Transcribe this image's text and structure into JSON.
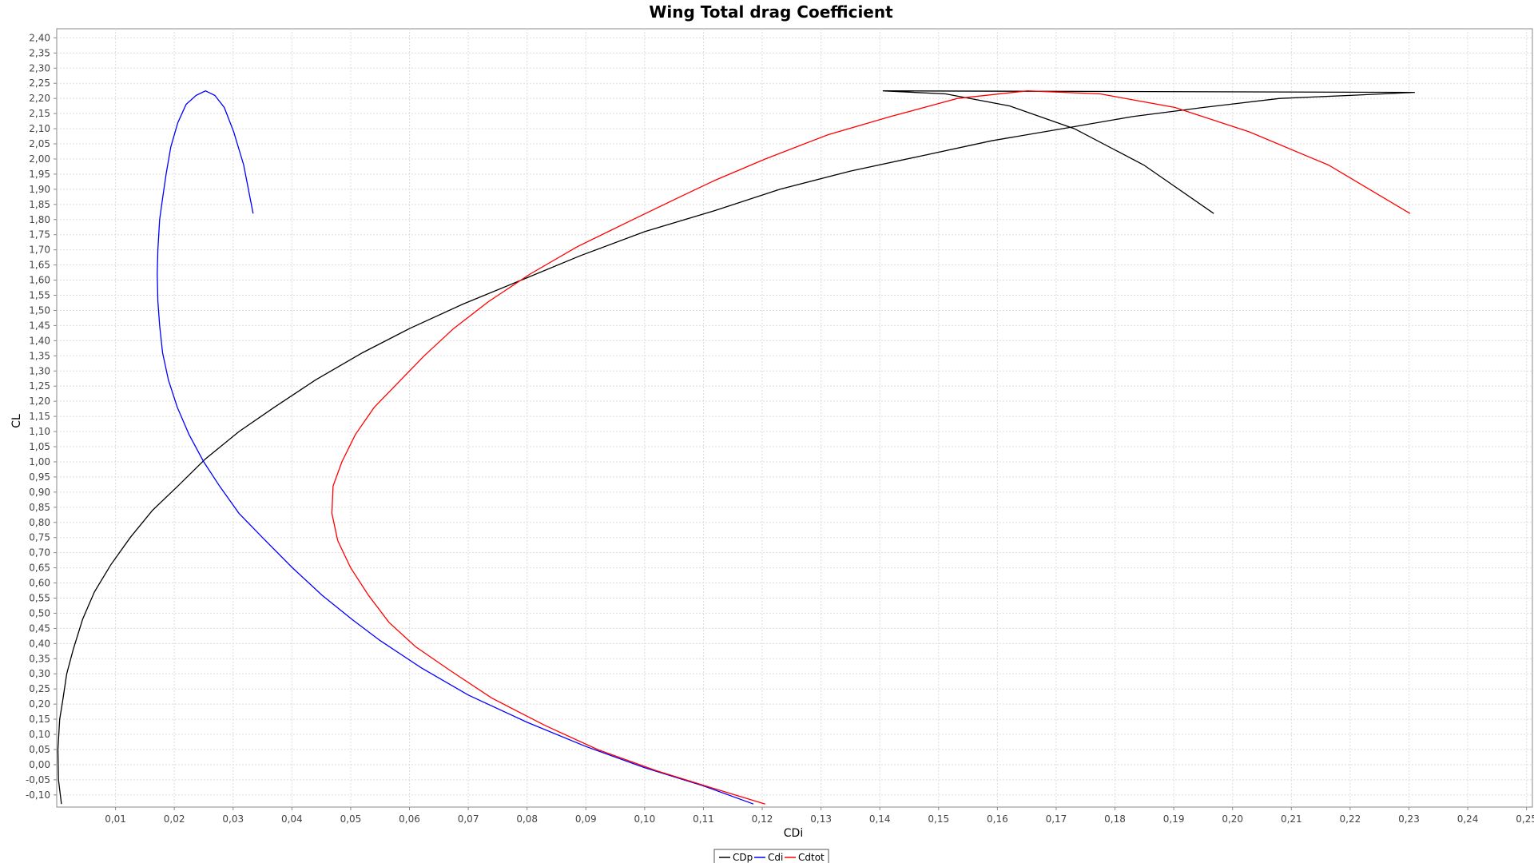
{
  "chart_data": {
    "type": "line",
    "title": "Wing Total drag Coefficient",
    "xlabel": "CDi",
    "ylabel": "CL",
    "xlim": [
      0,
      0.251
    ],
    "ylim": [
      -0.14,
      2.43
    ],
    "grid": true,
    "legend_position": "bottom-center",
    "x_tick_labels": [
      "0,01",
      "0,02",
      "0,03",
      "0,04",
      "0,05",
      "0,06",
      "0,07",
      "0,08",
      "0,09",
      "0,10",
      "0,11",
      "0,12",
      "0,13",
      "0,14",
      "0,15",
      "0,16",
      "0,17",
      "0,18",
      "0,19",
      "0,20",
      "0,21",
      "0,22",
      "0,23",
      "0,24",
      "0,25"
    ],
    "y_tick_labels": [
      "-0,10",
      "-0,05",
      "0,00",
      "0,05",
      "0,10",
      "0,15",
      "0,20",
      "0,25",
      "0,30",
      "0,35",
      "0,40",
      "0,45",
      "0,50",
      "0,55",
      "0,60",
      "0,65",
      "0,70",
      "0,75",
      "0,80",
      "0,85",
      "0,90",
      "0,95",
      "1,00",
      "1,05",
      "1,10",
      "1,15",
      "1,20",
      "1,25",
      "1,30",
      "1,35",
      "1,40",
      "1,45",
      "1,50",
      "1,55",
      "1,60",
      "1,65",
      "1,70",
      "1,75",
      "1,80",
      "1,85",
      "1,90",
      "1,95",
      "2,00",
      "2,05",
      "2,10",
      "2,15",
      "2,20",
      "2,25",
      "2,30",
      "2,35",
      "2,40"
    ],
    "series": [
      {
        "name": "CDp",
        "color": "#000000",
        "points": [
          [
            0.0008,
            -0.13
          ],
          [
            0.0003,
            -0.05
          ],
          [
            0.0002,
            0.05
          ],
          [
            0.0005,
            0.15
          ],
          [
            0.001,
            0.21
          ],
          [
            0.0017,
            0.3
          ],
          [
            0.0028,
            0.38
          ],
          [
            0.0044,
            0.48
          ],
          [
            0.0064,
            0.57
          ],
          [
            0.0092,
            0.66
          ],
          [
            0.0125,
            0.75
          ],
          [
            0.0163,
            0.84
          ],
          [
            0.0206,
            0.92
          ],
          [
            0.0253,
            1.01
          ],
          [
            0.031,
            1.1
          ],
          [
            0.037,
            1.18
          ],
          [
            0.044,
            1.27
          ],
          [
            0.052,
            1.36
          ],
          [
            0.06,
            1.44
          ],
          [
            0.069,
            1.52
          ],
          [
            0.079,
            1.6
          ],
          [
            0.089,
            1.68
          ],
          [
            0.1,
            1.76
          ],
          [
            0.112,
            1.83
          ],
          [
            0.123,
            1.9
          ],
          [
            0.135,
            1.96
          ],
          [
            0.147,
            2.01
          ],
          [
            0.159,
            2.06
          ],
          [
            0.171,
            2.1
          ],
          [
            0.183,
            2.14
          ],
          [
            0.195,
            2.17
          ],
          [
            0.208,
            2.2
          ],
          [
            0.22,
            2.21
          ],
          [
            0.231,
            2.22
          ],
          [
            0.1405,
            2.225
          ],
          [
            0.1512,
            2.215
          ],
          [
            0.1621,
            2.175
          ],
          [
            0.1731,
            2.1
          ],
          [
            0.1849,
            1.98
          ],
          [
            0.1968,
            1.82
          ]
        ]
      },
      {
        "name": "Cdi",
        "color": "#0000ff",
        "points": [
          [
            0.1185,
            -0.13
          ],
          [
            0.11,
            -0.07
          ],
          [
            0.1,
            -0.01
          ],
          [
            0.09,
            0.06
          ],
          [
            0.08,
            0.14
          ],
          [
            0.07,
            0.23
          ],
          [
            0.062,
            0.32
          ],
          [
            0.055,
            0.41
          ],
          [
            0.0502,
            0.48
          ],
          [
            0.0451,
            0.56
          ],
          [
            0.0401,
            0.65
          ],
          [
            0.035,
            0.75
          ],
          [
            0.031,
            0.83
          ],
          [
            0.0277,
            0.92
          ],
          [
            0.025,
            1.0
          ],
          [
            0.0225,
            1.09
          ],
          [
            0.0205,
            1.18
          ],
          [
            0.019,
            1.27
          ],
          [
            0.018,
            1.36
          ],
          [
            0.0175,
            1.45
          ],
          [
            0.0172,
            1.53
          ],
          [
            0.0171,
            1.62
          ],
          [
            0.0172,
            1.7
          ],
          [
            0.0175,
            1.8
          ],
          [
            0.018,
            1.87
          ],
          [
            0.0186,
            1.95
          ],
          [
            0.0194,
            2.04
          ],
          [
            0.0206,
            2.12
          ],
          [
            0.022,
            2.18
          ],
          [
            0.0237,
            2.21
          ],
          [
            0.0253,
            2.225
          ],
          [
            0.0269,
            2.21
          ],
          [
            0.0285,
            2.17
          ],
          [
            0.0301,
            2.09
          ],
          [
            0.0318,
            1.98
          ],
          [
            0.0334,
            1.82
          ]
        ]
      },
      {
        "name": "Cdtot",
        "color": "#ff0000",
        "points": [
          [
            0.1205,
            -0.13
          ],
          [
            0.112,
            -0.08
          ],
          [
            0.102,
            -0.02
          ],
          [
            0.092,
            0.05
          ],
          [
            0.083,
            0.13
          ],
          [
            0.074,
            0.22
          ],
          [
            0.067,
            0.31
          ],
          [
            0.061,
            0.39
          ],
          [
            0.0565,
            0.47
          ],
          [
            0.053,
            0.56
          ],
          [
            0.05,
            0.65
          ],
          [
            0.0478,
            0.74
          ],
          [
            0.0468,
            0.83
          ],
          [
            0.047,
            0.92
          ],
          [
            0.0485,
            1.0
          ],
          [
            0.0508,
            1.09
          ],
          [
            0.054,
            1.18
          ],
          [
            0.058,
            1.26
          ],
          [
            0.0625,
            1.35
          ],
          [
            0.0675,
            1.44
          ],
          [
            0.0735,
            1.53
          ],
          [
            0.0805,
            1.62
          ],
          [
            0.0885,
            1.71
          ],
          [
            0.098,
            1.8
          ],
          [
            0.1055,
            1.87
          ],
          [
            0.112,
            1.93
          ],
          [
            0.1205,
            2.0
          ],
          [
            0.1312,
            2.08
          ],
          [
            0.1418,
            2.14
          ],
          [
            0.1532,
            2.2
          ],
          [
            0.1651,
            2.225
          ],
          [
            0.1775,
            2.215
          ],
          [
            0.1902,
            2.17
          ],
          [
            0.2028,
            2.09
          ],
          [
            0.2163,
            1.98
          ],
          [
            0.2302,
            1.82
          ]
        ]
      }
    ]
  }
}
